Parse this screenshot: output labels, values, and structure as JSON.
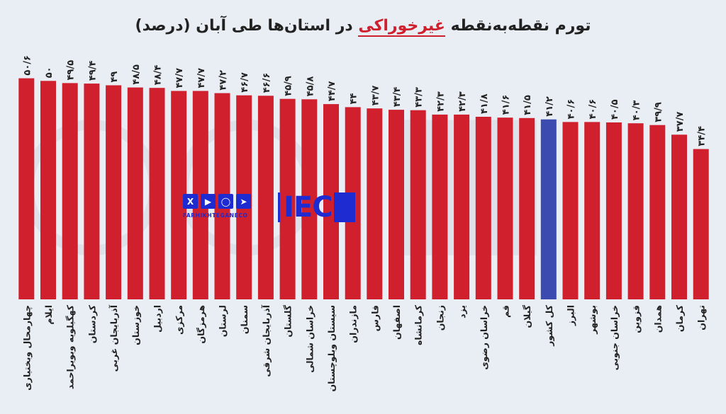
{
  "title": {
    "before": "تورم  نقطه‌به‌نقطه ",
    "highlight": "غیرخوراکی",
    "after": " در استان‌ها طی آبان (درصد)"
  },
  "watermark": {
    "handle": "FARHIKHTEGANECO",
    "brand": "IEC",
    "social_icons": [
      "x-icon",
      "youtube-icon",
      "instagram-icon",
      "telegram-icon"
    ]
  },
  "colors": {
    "bar": "#d0202e",
    "highlight_bar": "#3b4bb0",
    "title_highlight": "#d0202e",
    "brand": "#1d2bd0"
  },
  "chart_data": {
    "type": "bar",
    "ylim": [
      0,
      52
    ],
    "highlight_category": "کل کشور",
    "categories": [
      "چهارمحال وبختیاری",
      "ایلام",
      "کهگیلویه وبویراحمد",
      "کردستان",
      "آذربایجان غربی",
      "خوزستان",
      "اردبیل",
      "مرکزی",
      "هرمزگان",
      "لرستان",
      "سمنان",
      "آذربایجان شرقی",
      "گلستان",
      "خراسان شمالی",
      "سیستان وبلوچستان",
      "مازندران",
      "فارس",
      "اصفهان",
      "کرمانشاه",
      "زنجان",
      "یزد",
      "خراسان رضوی",
      "قم",
      "گیلان",
      "کل کشور",
      "البرز",
      "بوشهر",
      "خراسان جنوبی",
      "قزوین",
      "همدان",
      "کرمان",
      "تهران"
    ],
    "values": [
      50.6,
      50,
      49.5,
      49.4,
      49,
      48.5,
      48.4,
      47.7,
      47.7,
      47.2,
      46.7,
      46.6,
      45.9,
      45.8,
      44.7,
      44,
      43.7,
      43.4,
      43.3,
      42.3,
      42.3,
      41.8,
      41.6,
      41.5,
      41.2,
      40.6,
      40.6,
      40.5,
      40.3,
      39.9,
      37.7,
      34.4
    ],
    "value_labels": [
      "۵۰/۶",
      "۵۰",
      "۴۹/۵",
      "۴۹/۴",
      "۴۹",
      "۴۸/۵",
      "۴۸/۴",
      "۴۷/۷",
      "۴۷/۷",
      "۴۷/۲",
      "۴۶/۷",
      "۴۶/۶",
      "۴۵/۹",
      "۴۵/۸",
      "۴۴/۷",
      "۴۴",
      "۴۳/۷",
      "۴۳/۴",
      "۴۳/۳",
      "۴۲/۳",
      "۴۲/۳",
      "۴۱/۸",
      "۴۱/۶",
      "۴۱/۵",
      "۴۱/۲",
      "۴۰/۶",
      "۴۰/۶",
      "۴۰/۵",
      "۴۰/۳",
      "۳۹/۹",
      "۳۷/۷",
      "۳۴/۴"
    ]
  }
}
